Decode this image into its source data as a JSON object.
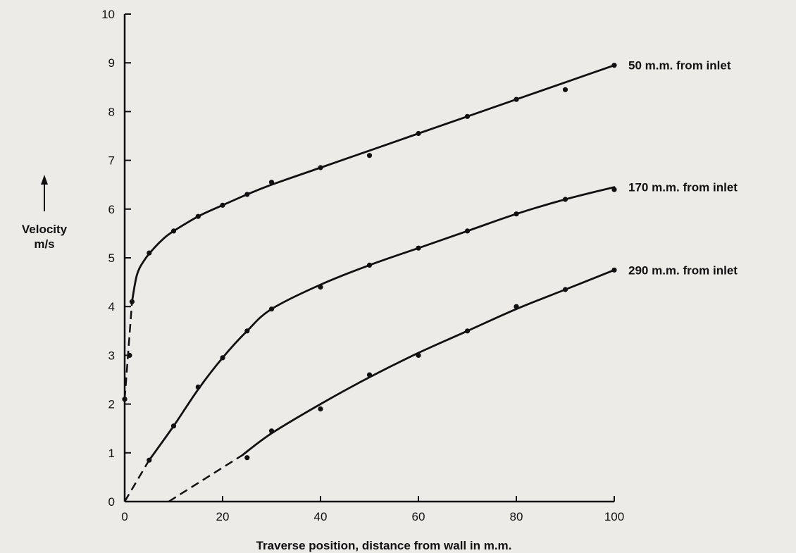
{
  "chart_data": {
    "type": "line",
    "xlabel": "Traverse position, distance from wall in m.m.",
    "ylabel": "Velocity m/s",
    "ylabel_lines": [
      "Velocity",
      "m/s"
    ],
    "xlim": [
      0,
      100
    ],
    "ylim": [
      0,
      10
    ],
    "x_ticks": [
      0,
      20,
      40,
      60,
      80,
      100
    ],
    "y_ticks": [
      0,
      1,
      2,
      3,
      4,
      5,
      6,
      7,
      8,
      9,
      10
    ],
    "grid": false,
    "legend": "none",
    "series": [
      {
        "name": "50 m.m. from inlet",
        "color": "#111111",
        "dashed_extension": [
          [
            0,
            2.1
          ],
          [
            1.5,
            4.1
          ]
        ],
        "points": [
          [
            0,
            2.1
          ],
          [
            1,
            3.0
          ],
          [
            1.5,
            4.1
          ],
          [
            5,
            5.1
          ],
          [
            10,
            5.55
          ],
          [
            15,
            5.85
          ],
          [
            20,
            6.08
          ],
          [
            25,
            6.3
          ],
          [
            30,
            6.55
          ],
          [
            40,
            6.85
          ],
          [
            50,
            7.1
          ],
          [
            60,
            7.55
          ],
          [
            70,
            7.9
          ],
          [
            80,
            8.25
          ],
          [
            90,
            8.45
          ],
          [
            100,
            8.95
          ]
        ],
        "curve": [
          [
            1.5,
            4.1
          ],
          [
            2.5,
            4.65
          ],
          [
            4,
            4.95
          ],
          [
            6,
            5.2
          ],
          [
            8,
            5.4
          ],
          [
            10,
            5.55
          ],
          [
            15,
            5.85
          ],
          [
            20,
            6.08
          ],
          [
            25,
            6.3
          ],
          [
            30,
            6.5
          ],
          [
            40,
            6.85
          ],
          [
            50,
            7.2
          ],
          [
            60,
            7.55
          ],
          [
            70,
            7.9
          ],
          [
            80,
            8.25
          ],
          [
            90,
            8.6
          ],
          [
            100,
            8.95
          ]
        ]
      },
      {
        "name": "170 m.m. from inlet",
        "color": "#111111",
        "dashed_extension": [
          [
            0,
            0
          ],
          [
            5,
            0.85
          ]
        ],
        "points": [
          [
            5,
            0.85
          ],
          [
            10,
            1.55
          ],
          [
            15,
            2.35
          ],
          [
            20,
            2.95
          ],
          [
            25,
            3.5
          ],
          [
            30,
            3.95
          ],
          [
            40,
            4.4
          ],
          [
            50,
            4.85
          ],
          [
            60,
            5.2
          ],
          [
            70,
            5.55
          ],
          [
            80,
            5.9
          ],
          [
            90,
            6.2
          ],
          [
            100,
            6.4
          ]
        ],
        "curve": [
          [
            5,
            0.85
          ],
          [
            10,
            1.55
          ],
          [
            15,
            2.3
          ],
          [
            20,
            2.95
          ],
          [
            25,
            3.5
          ],
          [
            30,
            3.95
          ],
          [
            40,
            4.45
          ],
          [
            50,
            4.85
          ],
          [
            60,
            5.2
          ],
          [
            70,
            5.55
          ],
          [
            80,
            5.9
          ],
          [
            90,
            6.2
          ],
          [
            100,
            6.45
          ]
        ]
      },
      {
        "name": "290 m.m. from inlet",
        "color": "#111111",
        "dashed_extension": [
          [
            9,
            0
          ],
          [
            24,
            0.95
          ]
        ],
        "points": [
          [
            25,
            0.9
          ],
          [
            30,
            1.45
          ],
          [
            40,
            1.9
          ],
          [
            50,
            2.6
          ],
          [
            60,
            3.0
          ],
          [
            70,
            3.5
          ],
          [
            80,
            4.0
          ],
          [
            90,
            4.35
          ],
          [
            100,
            4.75
          ]
        ],
        "curve": [
          [
            24,
            0.95
          ],
          [
            30,
            1.4
          ],
          [
            40,
            2.0
          ],
          [
            50,
            2.55
          ],
          [
            60,
            3.05
          ],
          [
            70,
            3.5
          ],
          [
            80,
            3.95
          ],
          [
            90,
            4.35
          ],
          [
            100,
            4.75
          ]
        ]
      }
    ]
  }
}
